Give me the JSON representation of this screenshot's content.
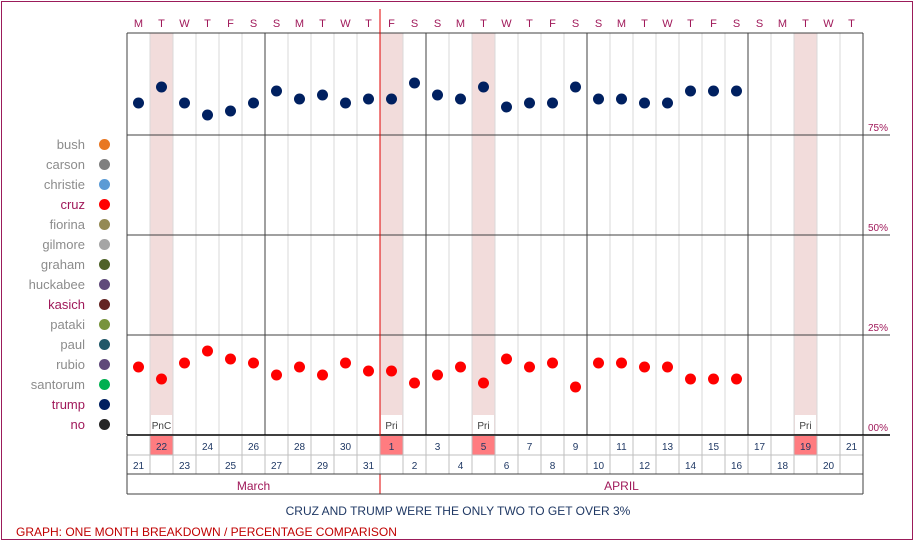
{
  "legend": [
    {
      "name": "bush",
      "color": "#e87722",
      "highlight": false
    },
    {
      "name": "carson",
      "color": "#7f7f7f",
      "highlight": false
    },
    {
      "name": "christie",
      "color": "#5b9bd5",
      "highlight": false
    },
    {
      "name": "cruz",
      "color": "#ff0000",
      "highlight": true
    },
    {
      "name": "fiorina",
      "color": "#948a54",
      "highlight": false
    },
    {
      "name": "gilmore",
      "color": "#a5a5a5",
      "highlight": false
    },
    {
      "name": "graham",
      "color": "#4f6228",
      "highlight": false
    },
    {
      "name": "huckabee",
      "color": "#604a7b",
      "highlight": false
    },
    {
      "name": "kasich",
      "color": "#632523",
      "highlight": true
    },
    {
      "name": "pataki",
      "color": "#77933c",
      "highlight": false
    },
    {
      "name": "paul",
      "color": "#215868",
      "highlight": false
    },
    {
      "name": "rubio",
      "color": "#5f497a",
      "highlight": false
    },
    {
      "name": "santorum",
      "color": "#00b050",
      "highlight": false
    },
    {
      "name": "trump",
      "color": "#002060",
      "highlight": true
    },
    {
      "name": "no",
      "color": "#262626",
      "highlight": true
    }
  ],
  "note": "CRUZ AND TRUMP WERE THE ONLY TWO TO GET OVER 3%",
  "caption": "GRAPH: ONE MONTH BREAKDOWN / PERCENTAGE COMPARISON",
  "chart_data": {
    "type": "scatter",
    "weekday_letters": [
      "M",
      "T",
      "W",
      "T",
      "F",
      "S",
      "S",
      "M",
      "T",
      "W",
      "T",
      "F",
      "S",
      "S",
      "M",
      "T",
      "W",
      "T",
      "F",
      "S",
      "S",
      "M",
      "T",
      "W",
      "T",
      "F",
      "S",
      "S",
      "M",
      "T",
      "W",
      "T"
    ],
    "dates": [
      "21",
      "22",
      "23",
      "24",
      "25",
      "26",
      "27",
      "28",
      "29",
      "30",
      "31",
      "1",
      "2",
      "3",
      "4",
      "5",
      "6",
      "7",
      "8",
      "9",
      "10",
      "11",
      "12",
      "13",
      "14",
      "15",
      "16",
      "17",
      "18",
      "19",
      "20",
      "21"
    ],
    "months": [
      {
        "label": "March",
        "start": 0,
        "end": 10
      },
      {
        "label": "APRIL",
        "start": 11,
        "end": 31
      }
    ],
    "y_ticks": [
      {
        "value": 75,
        "label": "75%"
      },
      {
        "value": 50,
        "label": "50%"
      },
      {
        "value": 25,
        "label": "25%"
      },
      {
        "value": 0,
        "label": "00%"
      }
    ],
    "ylim": [
      0,
      100
    ],
    "event_days": [
      {
        "index": 1,
        "label": "PnC",
        "date_highlight": true
      },
      {
        "index": 11,
        "label": "Pri",
        "date_highlight": true
      },
      {
        "index": 15,
        "label": "Pri",
        "date_highlight": true
      },
      {
        "index": 29,
        "label": "Pri",
        "date_highlight": true
      }
    ],
    "series": [
      {
        "name": "trump",
        "color": "#002060",
        "values": [
          83,
          87,
          83,
          80,
          81,
          83,
          86,
          84,
          85,
          83,
          84,
          84,
          88,
          85,
          84,
          87,
          82,
          83,
          83,
          87,
          84,
          84,
          83,
          83,
          86,
          86,
          86,
          null,
          null,
          null,
          null,
          null
        ]
      },
      {
        "name": "cruz",
        "color": "#ff0000",
        "values": [
          17,
          14,
          18,
          21,
          19,
          18,
          15,
          17,
          15,
          18,
          16,
          16,
          13,
          15,
          17,
          13,
          19,
          17,
          18,
          12,
          18,
          18,
          17,
          17,
          14,
          14,
          14,
          null,
          null,
          null,
          null,
          null
        ]
      }
    ]
  }
}
